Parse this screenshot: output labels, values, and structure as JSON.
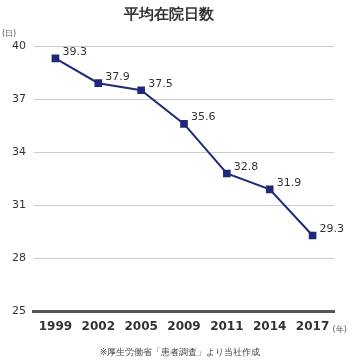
{
  "chart_data": {
    "type": "line",
    "title": "平均在院日数",
    "ylabel": "(日)",
    "xlabel": "(年)",
    "source": "※厚生労働省「患者調査」より当社作成",
    "categories": [
      "1999",
      "2002",
      "2005",
      "2009",
      "2011",
      "2014",
      "2017"
    ],
    "values": [
      39.3,
      37.9,
      37.5,
      35.6,
      32.8,
      31.9,
      29.3
    ],
    "color": "#1f2a78",
    "marker": "square",
    "line_style": "solid",
    "ylim": [
      25,
      40
    ],
    "yticks": [
      25,
      28,
      31,
      34,
      37,
      40
    ],
    "grid": true,
    "data_labels": true
  }
}
